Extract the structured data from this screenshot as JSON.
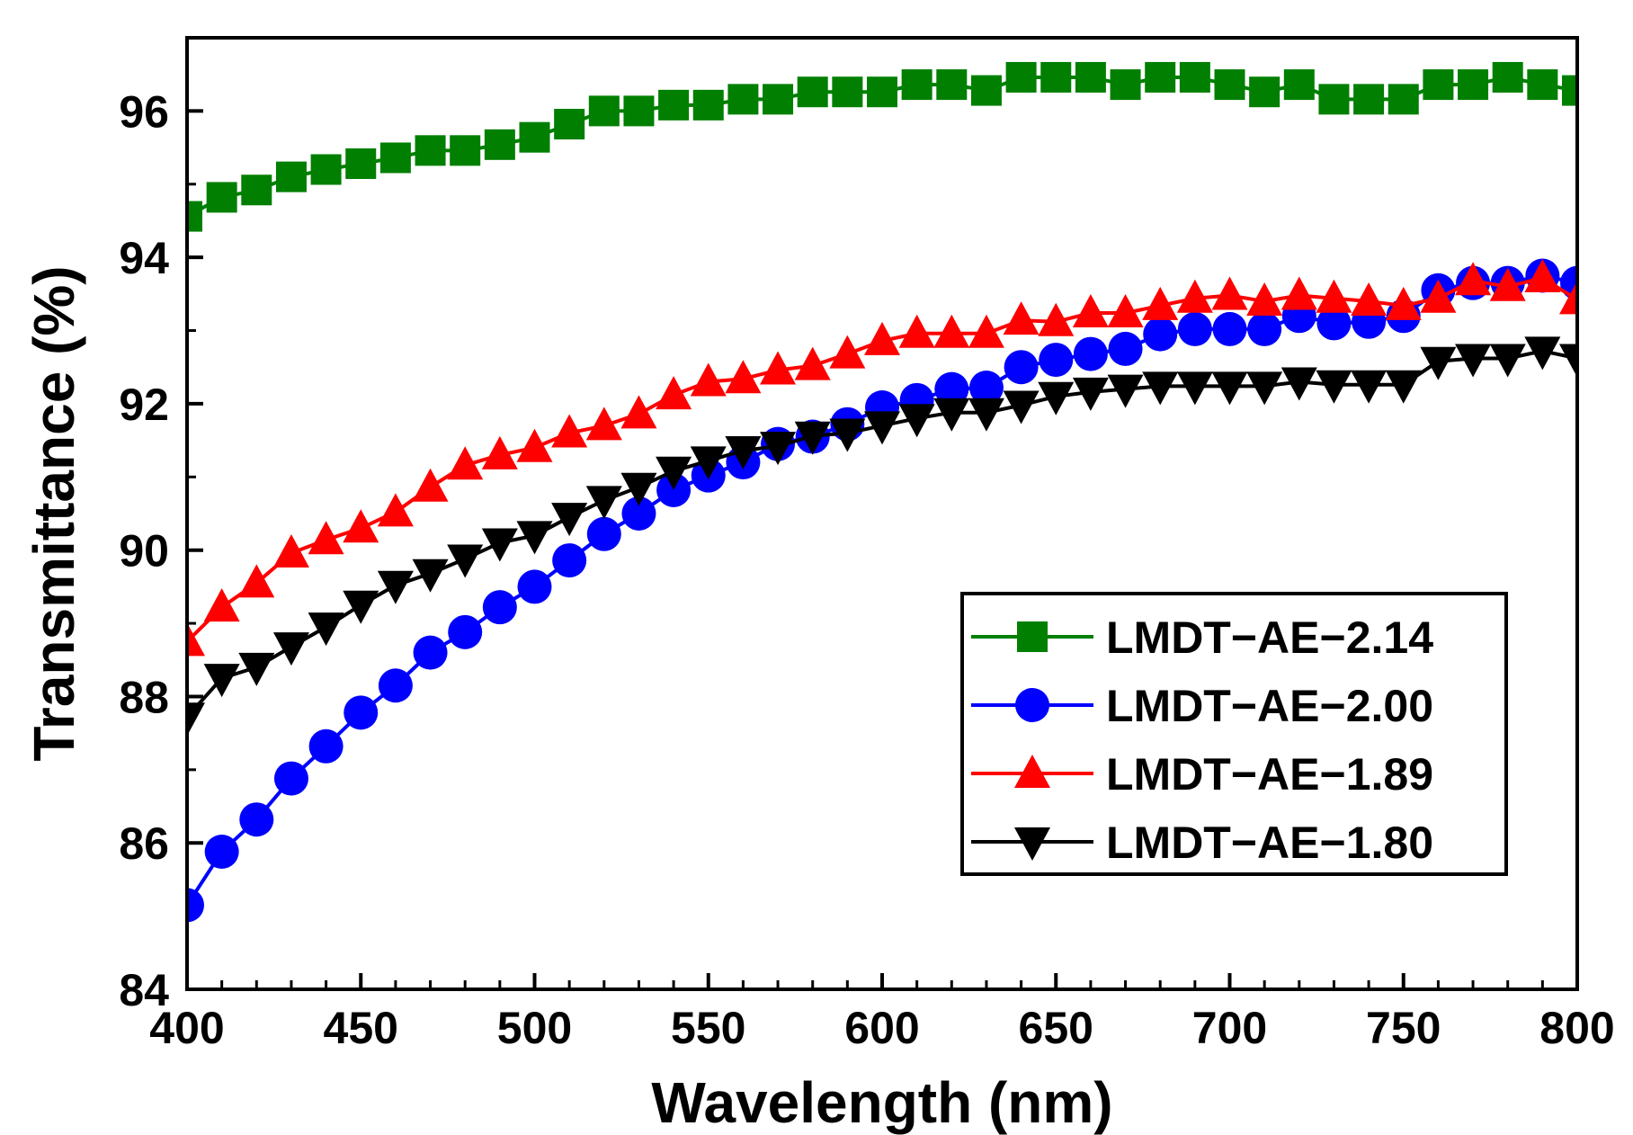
{
  "chart_data": {
    "type": "line",
    "title": "",
    "xlabel": "Wavelength (nm)",
    "ylabel": "Transmittance (%)",
    "xlim": [
      400,
      800
    ],
    "ylim": [
      84,
      97
    ],
    "xticks": [
      400,
      450,
      500,
      550,
      600,
      650,
      700,
      750,
      800
    ],
    "yticks": [
      84,
      86,
      88,
      90,
      92,
      94,
      96
    ],
    "legend_position": "center-right",
    "x": [
      400,
      410,
      420,
      430,
      440,
      450,
      460,
      470,
      480,
      490,
      500,
      510,
      520,
      530,
      540,
      550,
      560,
      570,
      580,
      590,
      600,
      610,
      620,
      630,
      640,
      650,
      660,
      670,
      680,
      690,
      700,
      710,
      720,
      730,
      740,
      750,
      760,
      770,
      780,
      790,
      800
    ],
    "series": [
      {
        "name": "LMDT−AE−2.14",
        "color": "#007f00",
        "marker": "square",
        "values": [
          94.56,
          94.82,
          94.92,
          95.1,
          95.2,
          95.28,
          95.36,
          95.46,
          95.46,
          95.54,
          95.64,
          95.82,
          96.0,
          96.0,
          96.08,
          96.08,
          96.16,
          96.16,
          96.26,
          96.26,
          96.26,
          96.36,
          96.36,
          96.28,
          96.46,
          96.46,
          96.46,
          96.36,
          96.46,
          96.46,
          96.36,
          96.26,
          96.36,
          96.16,
          96.16,
          96.16,
          96.36,
          96.36,
          96.46,
          96.36,
          96.28
        ]
      },
      {
        "name": "LMDT−AE−2.00",
        "color": "#0000ff",
        "marker": "circle",
        "values": [
          85.15,
          85.88,
          86.32,
          86.88,
          87.32,
          87.78,
          88.15,
          88.6,
          88.88,
          89.22,
          89.5,
          89.86,
          90.22,
          90.5,
          90.82,
          91.02,
          91.2,
          91.45,
          91.55,
          91.72,
          91.95,
          92.05,
          92.2,
          92.22,
          92.5,
          92.6,
          92.68,
          92.75,
          92.95,
          93.02,
          93.02,
          93.02,
          93.2,
          93.1,
          93.12,
          93.2,
          93.55,
          93.65,
          93.65,
          93.75,
          93.65
        ]
      },
      {
        "name": "LMDT−AE−1.89",
        "color": "#ff0000",
        "marker": "triangle-up",
        "values": [
          88.75,
          89.22,
          89.55,
          89.96,
          90.14,
          90.3,
          90.52,
          90.86,
          91.16,
          91.3,
          91.4,
          91.6,
          91.7,
          91.86,
          92.12,
          92.3,
          92.34,
          92.46,
          92.52,
          92.68,
          92.86,
          92.96,
          92.96,
          92.96,
          93.14,
          93.12,
          93.24,
          93.24,
          93.34,
          93.44,
          93.48,
          93.4,
          93.48,
          93.44,
          93.4,
          93.34,
          93.44,
          93.68,
          93.6,
          93.72,
          93.42
        ]
      },
      {
        "name": "LMDT−AE−1.80",
        "color": "#000000",
        "marker": "triangle-down",
        "values": [
          87.72,
          88.25,
          88.4,
          88.68,
          88.95,
          89.25,
          89.52,
          89.68,
          89.88,
          90.1,
          90.2,
          90.45,
          90.68,
          90.86,
          91.08,
          91.22,
          91.36,
          91.42,
          91.56,
          91.6,
          91.7,
          91.8,
          91.88,
          91.88,
          91.98,
          92.1,
          92.16,
          92.2,
          92.24,
          92.24,
          92.24,
          92.24,
          92.3,
          92.26,
          92.26,
          92.26,
          92.58,
          92.62,
          92.62,
          92.72,
          92.62
        ]
      }
    ]
  }
}
